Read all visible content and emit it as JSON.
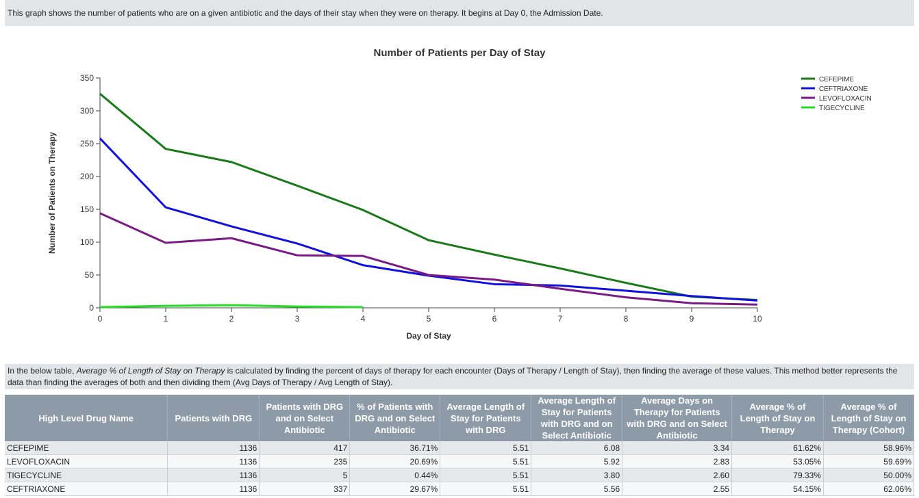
{
  "intro_text": "This graph shows the number of patients who are on a given antibiotic and the days of their stay when they were on therapy. It begins at Day 0, the Admission Date.",
  "table_note": {
    "prefix": "In the below table, ",
    "emphasis": "Average % of Length of Stay on Therapy",
    "suffix": " is calculated by finding the percent of days of therapy for each encounter (Days of Therapy / Length of Stay), then finding the average of these values. This method better represents the data than finding the averages of both and then dividing them (Avg Days of Therapy / Avg Length of Stay)."
  },
  "chart_data": {
    "type": "line",
    "title": "Number of Patients per Day of Stay",
    "xlabel": "Day of Stay",
    "ylabel": "Number of Patients on Therapy",
    "xlim": [
      0,
      10
    ],
    "ylim": [
      0,
      350
    ],
    "x_ticks": [
      0,
      1,
      2,
      3,
      4,
      5,
      6,
      7,
      8,
      9,
      10
    ],
    "y_ticks": [
      0,
      50,
      100,
      150,
      200,
      250,
      300,
      350
    ],
    "grid": false,
    "legend_position": "top-right",
    "series": [
      {
        "name": "CEFEPIME",
        "color": "#1a7a1a",
        "x": [
          0,
          1,
          2,
          3,
          4,
          5,
          6,
          7,
          8,
          9,
          10
        ],
        "values": [
          326,
          242,
          222,
          186,
          149,
          103,
          81,
          60,
          38,
          17,
          12
        ]
      },
      {
        "name": "CEFTRIAXONE",
        "color": "#1010e0",
        "x": [
          0,
          1,
          2,
          3,
          4,
          5,
          6,
          7,
          8,
          9,
          10
        ],
        "values": [
          258,
          153,
          124,
          98,
          65,
          49,
          36,
          34,
          26,
          18,
          11
        ]
      },
      {
        "name": "LEVOFLOXACIN",
        "color": "#7a1a85",
        "x": [
          0,
          1,
          2,
          3,
          4,
          5,
          6,
          7,
          8,
          9,
          10
        ],
        "values": [
          144,
          99,
          106,
          80,
          79,
          50,
          43,
          29,
          16,
          7,
          5
        ]
      },
      {
        "name": "TIGECYCLINE",
        "color": "#22dd22",
        "x": [
          0,
          1,
          2,
          3,
          4
        ],
        "values": [
          1,
          3,
          4,
          2,
          1
        ]
      }
    ]
  },
  "table": {
    "headers": [
      "High Level Drug Name",
      "Patients with DRG",
      "Patients with DRG and on Select Antibiotic",
      "% of Patients with DRG and on Select Antibiotic",
      "Average Length of Stay for Patients with DRG",
      "Average Length of Stay for Patients with DRG and on Select Antibiotic",
      "Average Days on Therapy for Patients with DRG and on Select Antibiotic",
      "Average % of Length of Stay on Therapy",
      "Average % of Length of Stay on Therapy (Cohort)"
    ],
    "rows": [
      [
        "CEFEPIME",
        "1136",
        "417",
        "36.71%",
        "5.51",
        "6.08",
        "3.34",
        "61.62%",
        "58.96%"
      ],
      [
        "LEVOFLOXACIN",
        "1136",
        "235",
        "20.69%",
        "5.51",
        "5.92",
        "2.83",
        "53.05%",
        "59.69%"
      ],
      [
        "TIGECYCLINE",
        "1136",
        "5",
        "0.44%",
        "5.51",
        "3.80",
        "2.60",
        "79.33%",
        "50.00%"
      ],
      [
        "CEFTRIAXONE",
        "1136",
        "337",
        "29.67%",
        "5.51",
        "5.56",
        "2.55",
        "54.15%",
        "62.06%"
      ]
    ]
  }
}
